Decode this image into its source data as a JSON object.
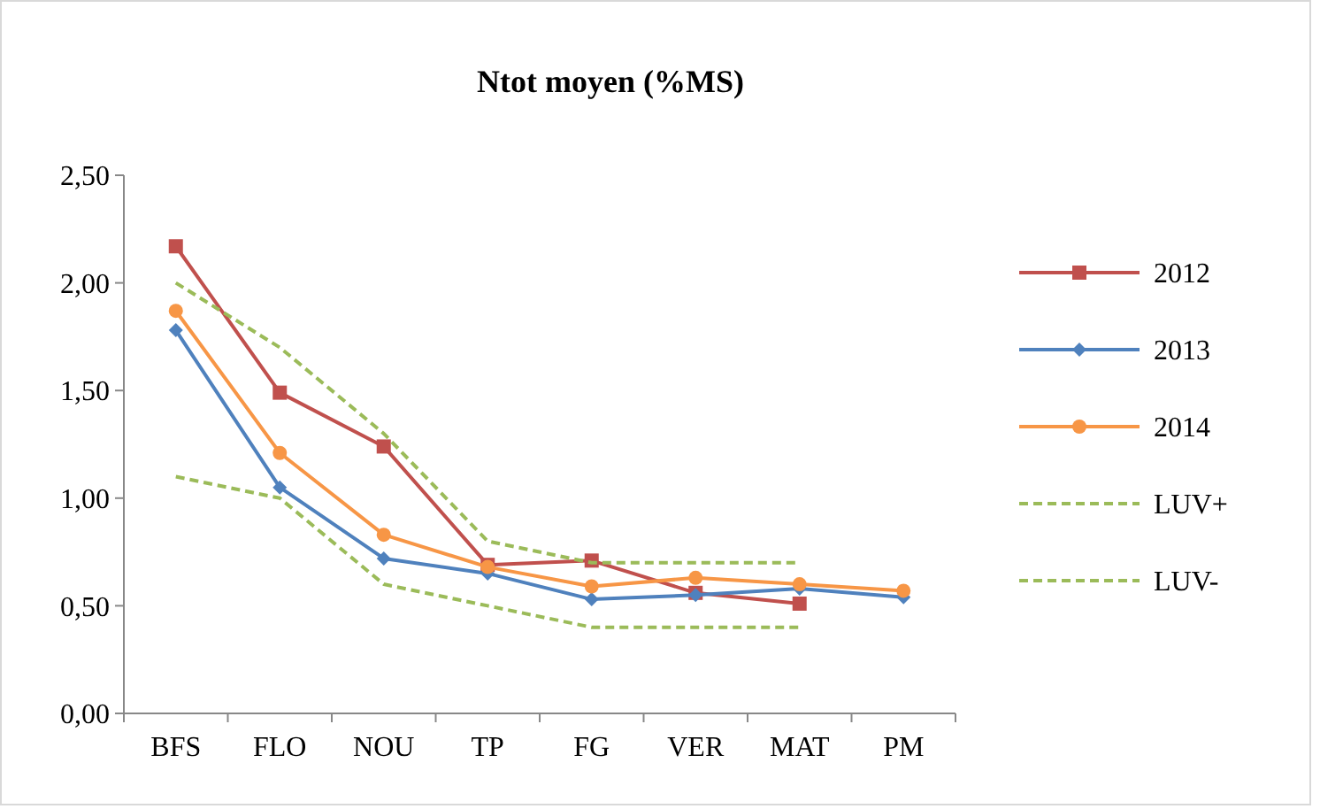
{
  "chart_data": {
    "type": "line",
    "title": "Ntot moyen (%MS)",
    "categories": [
      "BFS",
      "FLO",
      "NOU",
      "TP",
      "FG",
      "VER",
      "MAT",
      "PM"
    ],
    "series": [
      {
        "name": "2012",
        "color": "#c0504d",
        "marker": "square",
        "values": [
          2.17,
          1.49,
          1.24,
          0.69,
          0.71,
          0.56,
          0.51,
          null
        ]
      },
      {
        "name": "2013",
        "color": "#4f81bd",
        "marker": "diamond",
        "values": [
          1.78,
          1.05,
          0.72,
          0.65,
          0.53,
          0.55,
          0.58,
          0.54
        ]
      },
      {
        "name": "2014",
        "color": "#f79646",
        "marker": "circle",
        "values": [
          1.87,
          1.21,
          0.83,
          0.68,
          0.59,
          0.63,
          0.6,
          0.57
        ]
      },
      {
        "name": "LUV+",
        "color": "#9bbb59",
        "marker": "none",
        "line_style": "dashed",
        "values": [
          2.0,
          1.7,
          1.3,
          0.8,
          0.7,
          0.7,
          0.7,
          null
        ]
      },
      {
        "name": "LUV-",
        "color": "#9bbb59",
        "marker": "none",
        "line_style": "dashed",
        "values": [
          1.1,
          1.0,
          0.6,
          0.5,
          0.4,
          0.4,
          0.4,
          null
        ]
      }
    ],
    "ylim": [
      0,
      2.5
    ],
    "yticks": [
      {
        "value": 0,
        "label": "0,00"
      },
      {
        "value": 0.5,
        "label": "0,50"
      },
      {
        "value": 1,
        "label": "1,00"
      },
      {
        "value": 1.5,
        "label": "1,50"
      },
      {
        "value": 2,
        "label": "2,00"
      },
      {
        "value": 2.5,
        "label": "2,50"
      }
    ],
    "grid": false,
    "legend": "right"
  }
}
